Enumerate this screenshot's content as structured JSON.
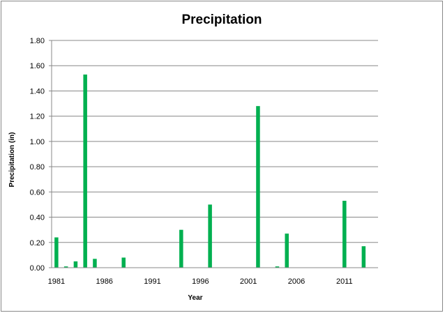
{
  "chart_data": {
    "type": "bar",
    "title": "Precipitation",
    "xlabel": "Year",
    "ylabel": "Precipitation (in)",
    "ylim": [
      0,
      1.8
    ],
    "yticks": [
      "0.00",
      "0.20",
      "0.40",
      "0.60",
      "0.80",
      "1.00",
      "1.20",
      "1.40",
      "1.60",
      "1.80"
    ],
    "xticks": [
      "1981",
      "1986",
      "1991",
      "1996",
      "2001",
      "2006",
      "2011"
    ],
    "grid": true,
    "legend": "none",
    "bar_color": "#00B050",
    "categories": [
      1981,
      1982,
      1983,
      1984,
      1985,
      1986,
      1987,
      1988,
      1989,
      1990,
      1991,
      1992,
      1993,
      1994,
      1995,
      1996,
      1997,
      1998,
      1999,
      2000,
      2001,
      2002,
      2003,
      2004,
      2005,
      2006,
      2007,
      2008,
      2009,
      2010,
      2011,
      2012,
      2013
    ],
    "values": [
      0.24,
      0.01,
      0.05,
      1.53,
      0.07,
      0,
      0,
      0.08,
      0,
      0,
      0,
      0,
      0,
      0.3,
      0,
      0,
      0.5,
      0,
      0,
      0,
      0,
      1.28,
      0,
      0.01,
      0.27,
      0,
      0,
      0,
      0,
      0,
      0.53,
      0,
      0.17
    ]
  }
}
